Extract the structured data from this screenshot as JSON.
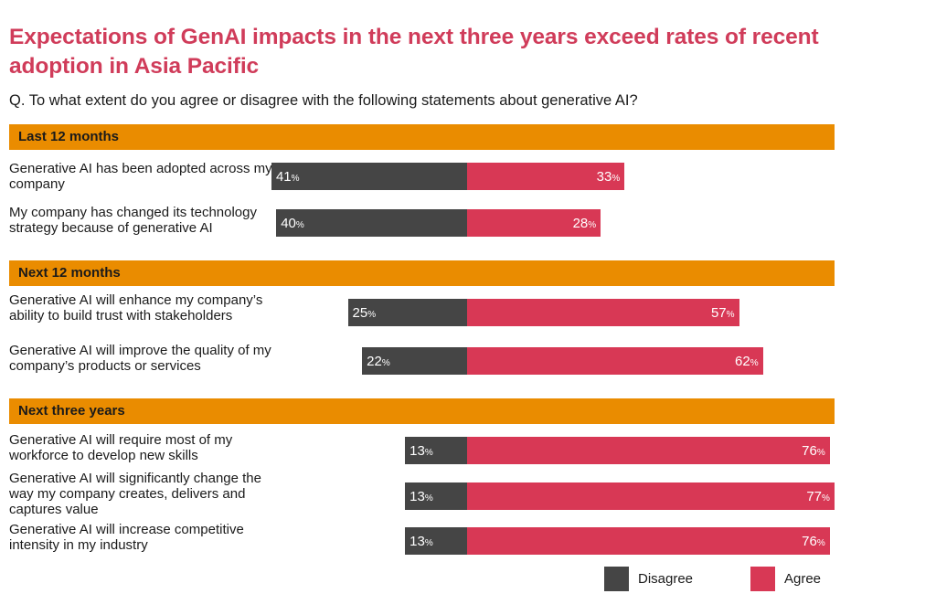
{
  "title": "Expectations of GenAI impacts in the next three years exceed rates of recent adoption in Asia Pacific",
  "subtitle": "Q. To what extent do you agree or disagree with the following statements about generative AI?",
  "colors": {
    "disagree": "#454545",
    "agree": "#d83855",
    "section": "#ea8c00",
    "title": "#d03c5a"
  },
  "chart_data": {
    "type": "bar",
    "orientation": "horizontal-diverging",
    "title": "Expectations of GenAI impacts in the next three years exceed rates of recent adoption in Asia Pacific",
    "subtitle": "Q. To what extent do you agree or disagree with the following statements about generative AI?",
    "unit": "%",
    "legend": {
      "position": "bottom-right",
      "entries": [
        "Disagree",
        "Agree"
      ]
    },
    "sections": [
      {
        "label": "Last 12 months",
        "rows": [
          {
            "label": "Generative AI has been adopted across my company",
            "disagree": 41,
            "agree": 33
          },
          {
            "label": "My company has changed its technology strategy because of generative AI",
            "disagree": 40,
            "agree": 28
          }
        ]
      },
      {
        "label": "Next 12 months",
        "rows": [
          {
            "label": "Generative AI will enhance my company’s ability to build trust with stakeholders",
            "disagree": 25,
            "agree": 57
          },
          {
            "label": "Generative AI will improve the quality of my company’s products or services",
            "disagree": 22,
            "agree": 62
          }
        ]
      },
      {
        "label": "Next three years",
        "rows": [
          {
            "label": "Generative AI will require most of my workforce to develop new skills",
            "disagree": 13,
            "agree": 76
          },
          {
            "label": "Generative AI will significantly change the way my company creates, delivers and captures value",
            "disagree": 13,
            "agree": 77
          },
          {
            "label": "Generative AI will increase competitive intensity in my industry",
            "disagree": 13,
            "agree": 76
          }
        ]
      }
    ],
    "series": [
      {
        "name": "Disagree",
        "values": [
          41,
          40,
          25,
          22,
          13,
          13,
          13
        ]
      },
      {
        "name": "Agree",
        "values": [
          33,
          28,
          57,
          62,
          76,
          77,
          76
        ]
      }
    ]
  }
}
